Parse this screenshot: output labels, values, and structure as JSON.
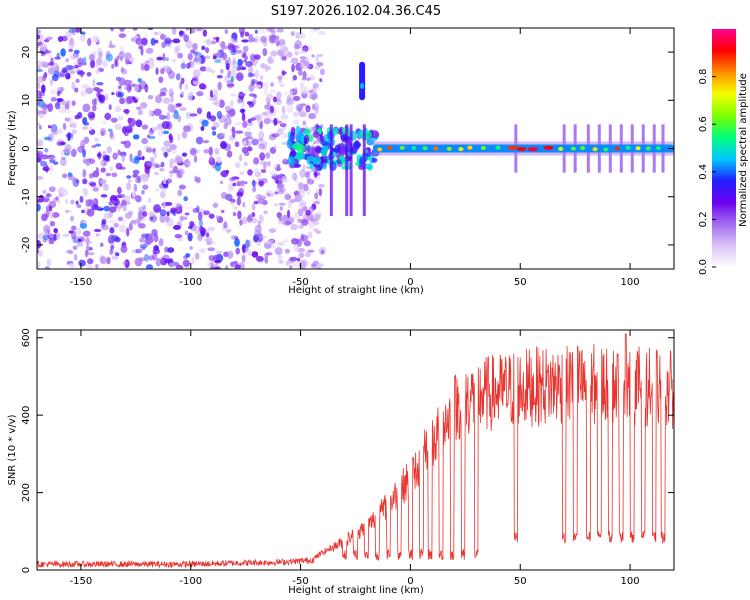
{
  "title": "S197.2026.102.04.36.C45",
  "colors": {
    "snr_line": "#e8332e",
    "background": "#ffffff",
    "axis": "#000000"
  },
  "chart_data": [
    {
      "type": "heatmap",
      "name": "spectrogram",
      "title": "S197.2026.102.04.36.C45",
      "xlabel": "Height of straight line (km)",
      "ylabel": "Frequency (Hz)",
      "xlim": [
        -170,
        120
      ],
      "ylim": [
        -25,
        25
      ],
      "xticks": [
        -150,
        -100,
        -50,
        0,
        50,
        100
      ],
      "yticks": [
        -20,
        -10,
        0,
        10,
        20
      ],
      "colorbar": {
        "label": "Normalized spectral amplitude",
        "range": [
          0,
          1
        ],
        "ticks": [
          0.0,
          0.2,
          0.4,
          0.6,
          0.8
        ],
        "tick_labels": [
          "0.0",
          "0.2",
          "0.4",
          "0.6",
          "0.8"
        ],
        "colormap": [
          "#ffffff",
          "#d9c2f5",
          "#a26bf0",
          "#6a00f0",
          "#1f22ff",
          "#00c8ff",
          "#00ff7a",
          "#7dff00",
          "#f5ff00",
          "#ff8c00",
          "#ff0000",
          "#ff0090"
        ]
      },
      "features": {
        "noise_region_km": [
          -170,
          -55
        ],
        "transition_region_km": [
          -55,
          -15
        ],
        "carrier_frequency_hz": 0,
        "carrier_start_km": -17,
        "spike_feature": {
          "x_km": -22,
          "freq_hz": [
            10,
            18
          ]
        },
        "carrier_strong_segment_km": [
          45,
          65
        ],
        "dropout_km": [
          48,
          70,
          75,
          81,
          86,
          91,
          96,
          101,
          106,
          111,
          115
        ]
      }
    },
    {
      "type": "line",
      "name": "snr",
      "xlabel": "Height of straight line (km)",
      "ylabel": "SNR (10 * v/v)",
      "xlim": [
        -170,
        120
      ],
      "ylim": [
        0,
        620
      ],
      "xticks": [
        -150,
        -100,
        -50,
        0,
        50,
        100
      ],
      "yticks": [
        0,
        200,
        400,
        600
      ],
      "series": [
        {
          "name": "SNR",
          "x": [
            -170,
            -100,
            -80,
            -60,
            -45,
            -40,
            -30,
            -20,
            -10,
            0,
            10,
            20,
            25,
            30,
            40,
            50,
            60,
            70,
            80,
            90,
            100,
            110,
            120
          ],
          "values": [
            15,
            15,
            18,
            20,
            25,
            45,
            75,
            110,
            170,
            240,
            330,
            420,
            440,
            450,
            460,
            470,
            475,
            480,
            480,
            480,
            480,
            470,
            465
          ]
        }
      ],
      "dropouts_km": [
        -30,
        -25,
        -20,
        -15,
        -10,
        -5,
        0,
        5,
        9,
        14,
        19,
        24,
        30,
        48,
        70,
        75,
        81,
        86,
        91,
        96,
        101,
        106,
        111,
        115
      ],
      "peak": {
        "x": 98,
        "value": 610
      }
    }
  ]
}
